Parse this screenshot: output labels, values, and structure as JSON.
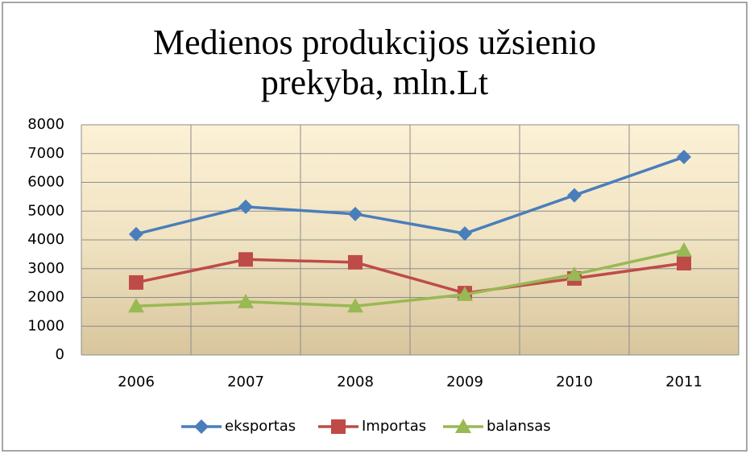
{
  "chart_data": {
    "type": "line",
    "title": "Medienos produkcijos užsienio prekyba, mln.Lt",
    "categories": [
      "2006",
      "2007",
      "2008",
      "2009",
      "2010",
      "2011"
    ],
    "series": [
      {
        "name": "eksportas",
        "color": "#4a7ebb",
        "marker": "diamond",
        "values": [
          4200,
          5150,
          4900,
          4220,
          5550,
          6880
        ]
      },
      {
        "name": "Importas",
        "color": "#be4b48",
        "marker": "square",
        "values": [
          2520,
          3320,
          3220,
          2150,
          2660,
          3190
        ]
      },
      {
        "name": "balansas",
        "color": "#98b954",
        "marker": "triangle",
        "values": [
          1700,
          1850,
          1700,
          2100,
          2800,
          3640
        ]
      }
    ],
    "ylim": [
      0,
      8000
    ],
    "yticks": [
      0,
      1000,
      2000,
      3000,
      4000,
      5000,
      6000,
      7000,
      8000
    ],
    "grid": true,
    "legend": "bottom"
  }
}
